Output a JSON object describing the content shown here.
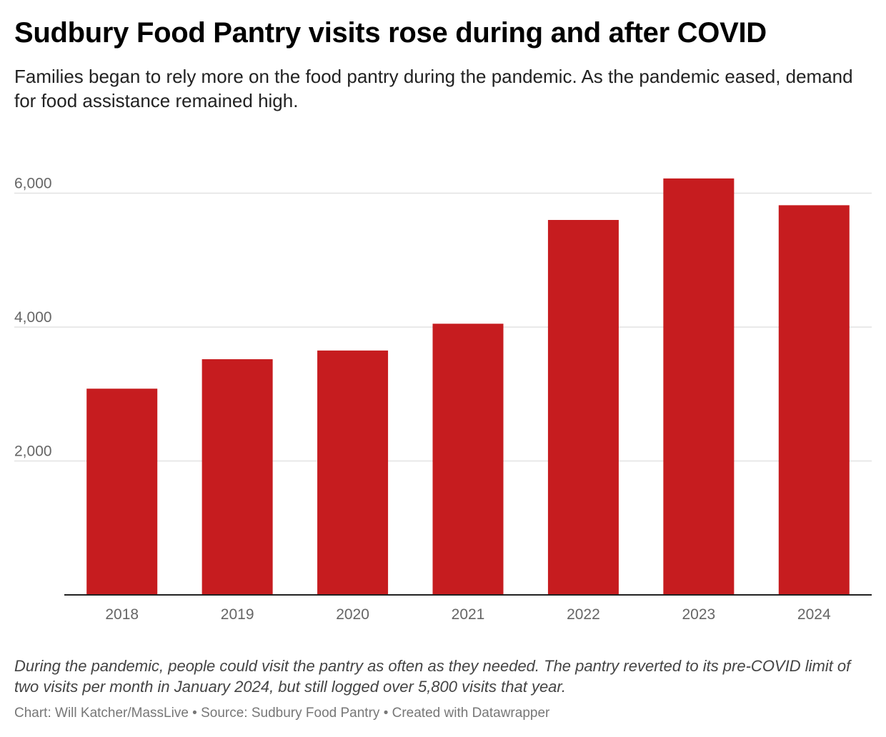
{
  "title": "Sudbury Food Pantry visits rose during and after COVID",
  "subtitle": "Families began to rely more on the food pantry during the pandemic. As the pandemic eased, demand for food assistance remained high.",
  "notes": "During the pandemic, people could visit the pantry as often as they needed. The pantry reverted to its pre-COVID limit of two visits per month in January 2024, but still logged over 5,800 visits that year.",
  "credit": "Chart: Will Katcher/MassLive • Source: Sudbury Food Pantry • Created with Datawrapper",
  "colors": {
    "bar": "#c61c1f",
    "grid": "#e2e2e2",
    "axis": "#222222"
  },
  "chart_data": {
    "type": "bar",
    "title": "Sudbury Food Pantry visits rose during and after COVID",
    "xlabel": "",
    "ylabel": "",
    "categories": [
      "2018",
      "2019",
      "2020",
      "2021",
      "2022",
      "2023",
      "2024"
    ],
    "values": [
      3080,
      3520,
      3650,
      4050,
      5600,
      6220,
      5820
    ],
    "ylim": [
      0,
      6400
    ],
    "yticks": [
      2000,
      4000,
      6000
    ],
    "ytick_labels": [
      "2,000",
      "4,000",
      "6,000"
    ],
    "grid": true,
    "legend": "none"
  }
}
